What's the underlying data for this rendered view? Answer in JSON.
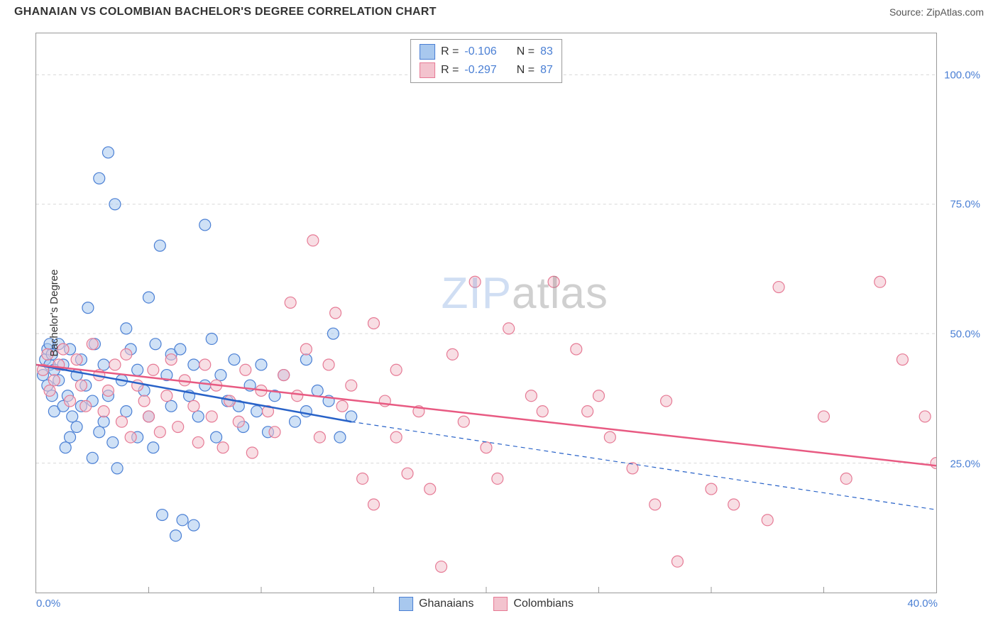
{
  "title": "GHANAIAN VS COLOMBIAN BACHELOR'S DEGREE CORRELATION CHART",
  "source": "Source: ZipAtlas.com",
  "ylabel": "Bachelor's Degree",
  "watermark_zip": "ZIP",
  "watermark_atlas": "atlas",
  "chart": {
    "type": "scatter",
    "background_color": "#ffffff",
    "border_color": "#999999",
    "grid_color": "#d8d8d8",
    "tick_color": "#999999",
    "label_color": "#4a7fd4",
    "text_color": "#333333",
    "xlim": [
      0,
      40
    ],
    "ylim": [
      0,
      108
    ],
    "xtick_step": 5,
    "xticks": [
      0,
      5,
      10,
      15,
      20,
      25,
      30,
      35,
      40
    ],
    "xtick_labels": {
      "0": "0.0%",
      "40": "40.0%"
    },
    "yticks": [
      25,
      50,
      75,
      100
    ],
    "ytick_labels": {
      "25": "25.0%",
      "50": "50.0%",
      "75": "75.0%",
      "100": "100.0%"
    },
    "marker_radius": 8,
    "marker_opacity": 0.55,
    "trend_line_width": 2.5
  },
  "series": [
    {
      "name": "Ghanaians",
      "fill_color": "#a8c8ee",
      "stroke_color": "#4a7fd4",
      "line_color": "#2862c8",
      "R": "-0.106",
      "N": "83",
      "trend": {
        "solid": [
          [
            0,
            44
          ],
          [
            14,
            33
          ]
        ],
        "dashed": [
          [
            14,
            33
          ],
          [
            40,
            16
          ]
        ]
      },
      "points": [
        [
          0.3,
          42
        ],
        [
          0.4,
          45
        ],
        [
          0.5,
          47
        ],
        [
          0.5,
          40
        ],
        [
          0.6,
          48
        ],
        [
          0.6,
          44
        ],
        [
          0.7,
          38
        ],
        [
          0.7,
          46
        ],
        [
          0.8,
          43
        ],
        [
          0.8,
          35
        ],
        [
          1.0,
          48
        ],
        [
          1.0,
          41
        ],
        [
          1.2,
          36
        ],
        [
          1.2,
          44
        ],
        [
          1.3,
          28
        ],
        [
          1.4,
          38
        ],
        [
          1.5,
          30
        ],
        [
          1.5,
          47
        ],
        [
          1.6,
          34
        ],
        [
          1.8,
          42
        ],
        [
          1.8,
          32
        ],
        [
          2.0,
          36
        ],
        [
          2.0,
          45
        ],
        [
          2.2,
          40
        ],
        [
          2.3,
          55
        ],
        [
          2.5,
          26
        ],
        [
          2.5,
          37
        ],
        [
          2.6,
          48
        ],
        [
          2.8,
          31
        ],
        [
          2.8,
          80
        ],
        [
          3.0,
          33
        ],
        [
          3.0,
          44
        ],
        [
          3.2,
          85
        ],
        [
          3.2,
          38
        ],
        [
          3.4,
          29
        ],
        [
          3.5,
          75
        ],
        [
          3.6,
          24
        ],
        [
          3.8,
          41
        ],
        [
          4.0,
          35
        ],
        [
          4.0,
          51
        ],
        [
          4.2,
          47
        ],
        [
          4.5,
          43
        ],
        [
          4.5,
          30
        ],
        [
          4.8,
          39
        ],
        [
          5.0,
          57
        ],
        [
          5.0,
          34
        ],
        [
          5.2,
          28
        ],
        [
          5.3,
          48
        ],
        [
          5.5,
          67
        ],
        [
          5.6,
          15
        ],
        [
          5.8,
          42
        ],
        [
          6.0,
          36
        ],
        [
          6.0,
          46
        ],
        [
          6.2,
          11
        ],
        [
          6.4,
          47
        ],
        [
          6.5,
          14
        ],
        [
          6.8,
          38
        ],
        [
          7.0,
          13
        ],
        [
          7.0,
          44
        ],
        [
          7.2,
          34
        ],
        [
          7.5,
          71
        ],
        [
          7.5,
          40
        ],
        [
          7.8,
          49
        ],
        [
          8.0,
          30
        ],
        [
          8.2,
          42
        ],
        [
          8.5,
          37
        ],
        [
          8.8,
          45
        ],
        [
          9.0,
          36
        ],
        [
          9.2,
          32
        ],
        [
          9.5,
          40
        ],
        [
          9.8,
          35
        ],
        [
          10.0,
          44
        ],
        [
          10.3,
          31
        ],
        [
          10.6,
          38
        ],
        [
          11.0,
          42
        ],
        [
          11.5,
          33
        ],
        [
          12.0,
          35
        ],
        [
          12.0,
          45
        ],
        [
          12.5,
          39
        ],
        [
          13.0,
          37
        ],
        [
          13.2,
          50
        ],
        [
          13.5,
          30
        ],
        [
          14.0,
          34
        ]
      ]
    },
    {
      "name": "Colombians",
      "fill_color": "#f3c3ce",
      "stroke_color": "#e67a95",
      "line_color": "#e85a82",
      "R": "-0.297",
      "N": "87",
      "trend": {
        "solid": [
          [
            0,
            44
          ],
          [
            40,
            24.5
          ]
        ]
      },
      "points": [
        [
          0.3,
          43
        ],
        [
          0.5,
          46
        ],
        [
          0.6,
          39
        ],
        [
          0.8,
          41
        ],
        [
          1.0,
          44
        ],
        [
          1.2,
          47
        ],
        [
          1.5,
          37
        ],
        [
          1.8,
          45
        ],
        [
          2.0,
          40
        ],
        [
          2.2,
          36
        ],
        [
          2.5,
          48
        ],
        [
          2.8,
          42
        ],
        [
          3.0,
          35
        ],
        [
          3.2,
          39
        ],
        [
          3.5,
          44
        ],
        [
          3.8,
          33
        ],
        [
          4.0,
          46
        ],
        [
          4.2,
          30
        ],
        [
          4.5,
          40
        ],
        [
          4.8,
          37
        ],
        [
          5.0,
          34
        ],
        [
          5.2,
          43
        ],
        [
          5.5,
          31
        ],
        [
          5.8,
          38
        ],
        [
          6.0,
          45
        ],
        [
          6.3,
          32
        ],
        [
          6.6,
          41
        ],
        [
          7.0,
          36
        ],
        [
          7.2,
          29
        ],
        [
          7.5,
          44
        ],
        [
          7.8,
          34
        ],
        [
          8.0,
          40
        ],
        [
          8.3,
          28
        ],
        [
          8.6,
          37
        ],
        [
          9.0,
          33
        ],
        [
          9.3,
          43
        ],
        [
          9.6,
          27
        ],
        [
          10.0,
          39
        ],
        [
          10.3,
          35
        ],
        [
          10.6,
          31
        ],
        [
          11.0,
          42
        ],
        [
          11.3,
          56
        ],
        [
          11.6,
          38
        ],
        [
          12.0,
          47
        ],
        [
          12.3,
          68
        ],
        [
          12.6,
          30
        ],
        [
          13.0,
          44
        ],
        [
          13.3,
          54
        ],
        [
          13.6,
          36
        ],
        [
          14.0,
          40
        ],
        [
          14.5,
          22
        ],
        [
          15.0,
          52
        ],
        [
          15.0,
          17
        ],
        [
          15.5,
          37
        ],
        [
          16.0,
          30
        ],
        [
          16.0,
          43
        ],
        [
          16.5,
          23
        ],
        [
          17.0,
          35
        ],
        [
          17.5,
          20
        ],
        [
          18.0,
          5
        ],
        [
          18.5,
          46
        ],
        [
          19.0,
          33
        ],
        [
          19.5,
          60
        ],
        [
          20.0,
          28
        ],
        [
          20.5,
          22
        ],
        [
          21.0,
          51
        ],
        [
          22.0,
          38
        ],
        [
          22.5,
          35
        ],
        [
          23.0,
          60
        ],
        [
          24.0,
          47
        ],
        [
          24.5,
          35
        ],
        [
          25.0,
          38
        ],
        [
          25.5,
          30
        ],
        [
          26.5,
          24
        ],
        [
          27.5,
          17
        ],
        [
          28.0,
          37
        ],
        [
          28.5,
          6
        ],
        [
          30.0,
          20
        ],
        [
          31.0,
          17
        ],
        [
          32.5,
          14
        ],
        [
          33.0,
          59
        ],
        [
          35.0,
          34
        ],
        [
          36.0,
          22
        ],
        [
          37.5,
          60
        ],
        [
          38.5,
          45
        ],
        [
          39.5,
          34
        ],
        [
          40.0,
          25
        ]
      ]
    }
  ],
  "legend": {
    "r_label": "R =",
    "n_label": "N ="
  }
}
